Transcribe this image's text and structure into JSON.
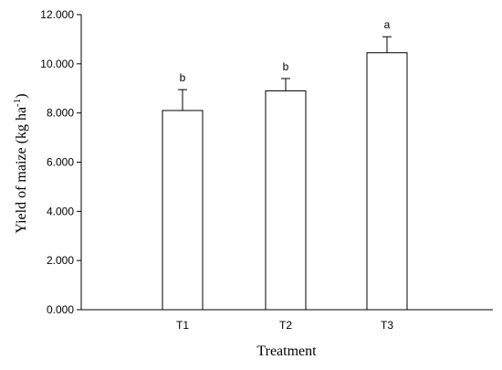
{
  "chart_data": {
    "type": "bar",
    "categories": [
      "T1",
      "T2",
      "T3"
    ],
    "values": [
      8100,
      8900,
      10450
    ],
    "errors": [
      850,
      500,
      650
    ],
    "significance": [
      "b",
      "b",
      "a"
    ],
    "title": "",
    "xlabel": "Treatment",
    "ylabel": "Yield of maize (kg ha",
    "ylabel_superscript": "-1",
    "ylabel_suffix": ")",
    "ylim": [
      0,
      12000
    ],
    "yticks": [
      0,
      2000,
      4000,
      6000,
      8000,
      10000,
      12000
    ],
    "ytick_labels": [
      "0.000",
      "2.000",
      "4.000",
      "6.000",
      "8.000",
      "10.000",
      "12.000"
    ],
    "grid": false,
    "legend": "none",
    "bar_fill": "#ffffff",
    "bar_stroke": "#000000"
  }
}
